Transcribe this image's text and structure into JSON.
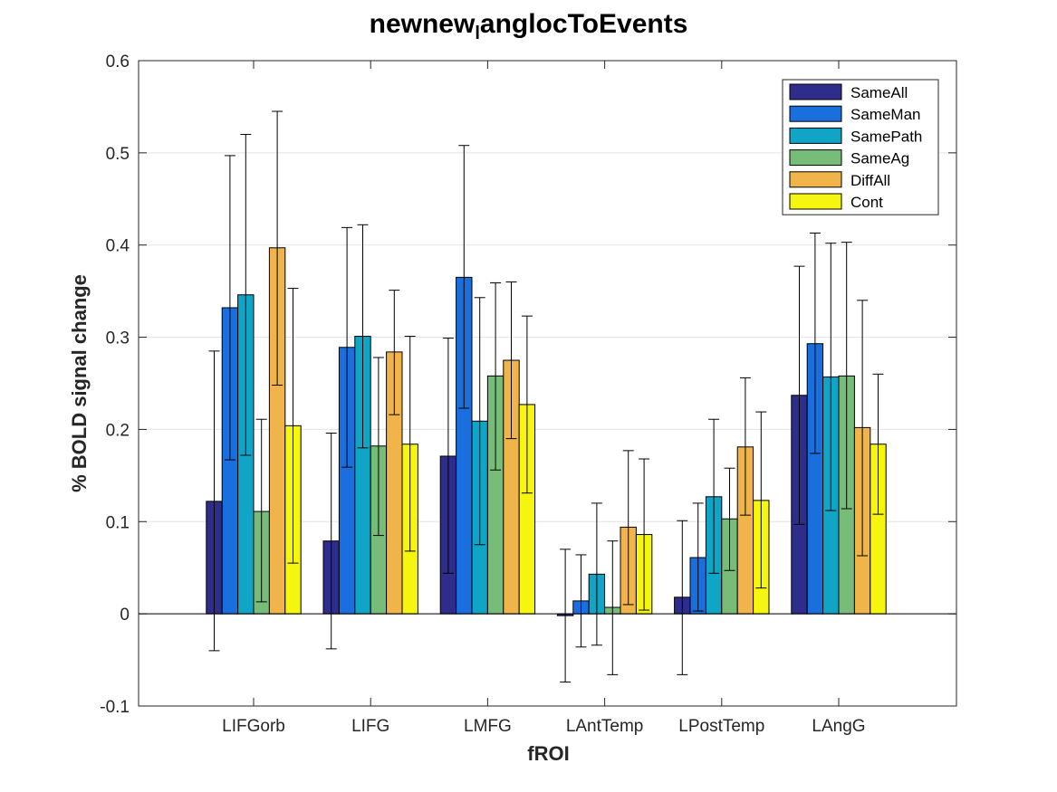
{
  "chart_data": {
    "type": "bar",
    "title_parts": [
      "newnew",
      "l",
      "anglocToEvents"
    ],
    "xlabel": "fROI",
    "ylabel": "% BOLD signal change",
    "ylim": [
      -0.1,
      0.6
    ],
    "yticks": [
      "-0.1",
      "0",
      "0.1",
      "0.2",
      "0.3",
      "0.4",
      "0.5",
      "0.6"
    ],
    "yticks_values": [
      -0.1,
      0,
      0.1,
      0.2,
      0.3,
      0.4,
      0.5,
      0.6
    ],
    "grid": "horizontal",
    "legend_position": "top-right",
    "categories": [
      "LIFGorb",
      "LIFG",
      "LMFG",
      "LAntTemp",
      "LPostTemp",
      "LAngG"
    ],
    "series": [
      {
        "name": "SameAll",
        "color": "#2e2d8b",
        "values": [
          0.122,
          0.079,
          0.171,
          -0.002,
          0.018,
          0.237
        ],
        "err_low": [
          -0.04,
          -0.038,
          0.044,
          -0.074,
          -0.066,
          0.097
        ],
        "err_high": [
          0.285,
          0.196,
          0.299,
          0.07,
          0.101,
          0.377
        ]
      },
      {
        "name": "SameMan",
        "color": "#1a6fde",
        "values": [
          0.332,
          0.289,
          0.365,
          0.014,
          0.061,
          0.293
        ],
        "err_low": [
          0.167,
          0.159,
          0.223,
          -0.036,
          0.003,
          0.174
        ],
        "err_high": [
          0.497,
          0.419,
          0.508,
          0.064,
          0.12,
          0.413
        ]
      },
      {
        "name": "SamePath",
        "color": "#10a5c6",
        "values": [
          0.346,
          0.301,
          0.209,
          0.043,
          0.127,
          0.257
        ],
        "err_low": [
          0.172,
          0.18,
          0.075,
          -0.034,
          0.044,
          0.112
        ],
        "err_high": [
          0.52,
          0.422,
          0.343,
          0.12,
          0.211,
          0.402
        ]
      },
      {
        "name": "SameAg",
        "color": "#77bd79",
        "values": [
          0.111,
          0.182,
          0.258,
          0.007,
          0.103,
          0.258
        ],
        "err_low": [
          0.013,
          0.085,
          0.156,
          -0.066,
          0.047,
          0.114
        ],
        "err_high": [
          0.211,
          0.278,
          0.359,
          0.079,
          0.158,
          0.403
        ]
      },
      {
        "name": "DiffAll",
        "color": "#f0b44a",
        "values": [
          0.397,
          0.284,
          0.275,
          0.094,
          0.181,
          0.202
        ],
        "err_low": [
          0.248,
          0.216,
          0.19,
          0.01,
          0.107,
          0.063
        ],
        "err_high": [
          0.545,
          0.351,
          0.36,
          0.177,
          0.256,
          0.34
        ]
      },
      {
        "name": "Cont",
        "color": "#f5f50f",
        "values": [
          0.204,
          0.184,
          0.227,
          0.086,
          0.123,
          0.184
        ],
        "err_low": [
          0.055,
          0.068,
          0.131,
          0.004,
          0.028,
          0.108
        ],
        "err_high": [
          0.353,
          0.301,
          0.323,
          0.168,
          0.219,
          0.26
        ]
      }
    ]
  }
}
